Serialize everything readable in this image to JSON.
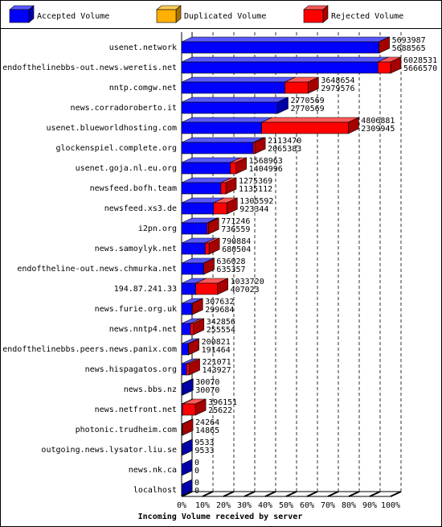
{
  "chart_data": {
    "type": "bar3d",
    "title": "Incoming Volume received by server",
    "legend": [
      {
        "name": "Accepted Volume",
        "color": "#0000ff"
      },
      {
        "name": "Duplicated Volume",
        "color": "#ffb000"
      },
      {
        "name": "Rejected Volume",
        "color": "#ff0000"
      }
    ],
    "categories": [
      "usenet.network",
      "endofthelinebbs-out.news.weretis.net",
      "nntp.comgw.net",
      "news.corradoroberto.it",
      "usenet.blueworldhosting.com",
      "glockenspiel.complete.org",
      "usenet.goja.nl.eu.org",
      "newsfeed.bofh.team",
      "newsfeed.xs3.de",
      "i2pn.org",
      "news.samoylyk.net",
      "endoftheline-out.news.chmurka.net",
      "194.87.241.33",
      "news.furie.org.uk",
      "news.nntp4.net",
      "endofthelinebbs.peers.news.panix.com",
      "news.hispagatos.org",
      "news.bbs.nz",
      "news.netfront.net",
      "photonic.trudheim.com",
      "outgoing.news.lysator.liu.se",
      "news.nk.ca",
      "localhost"
    ],
    "offered": [
      5693987,
      6028531,
      3648654,
      2770569,
      4806881,
      2113470,
      1568963,
      1275369,
      1305592,
      771246,
      790884,
      636028,
      1033720,
      307632,
      342856,
      200821,
      221071,
      30070,
      396151,
      24264,
      9533,
      0,
      0
    ],
    "accepted": [
      5688565,
      5666570,
      2979576,
      2770569,
      2309945,
      2065383,
      1404996,
      1135112,
      923344,
      736559,
      680504,
      635357,
      407023,
      299684,
      255554,
      191464,
      143927,
      30070,
      25622,
      14865,
      9533,
      0,
      0
    ],
    "xlim": [
      0,
      6028531
    ],
    "xticks": [
      {
        "value": 0,
        "label": "0%"
      },
      {
        "value": 602853.1,
        "label": "10%"
      },
      {
        "value": 1205706.2,
        "label": "20%"
      },
      {
        "value": 1808559.3,
        "label": "30%"
      },
      {
        "value": 2411412.4,
        "label": "40%"
      },
      {
        "value": 3014265.5,
        "label": "50%"
      },
      {
        "value": 3617118.6,
        "label": "60%"
      },
      {
        "value": 4219971.7,
        "label": "70%"
      },
      {
        "value": 4822824.8,
        "label": "80%"
      },
      {
        "value": 5425677.9,
        "label": "90%"
      },
      {
        "value": 6028531,
        "label": "100%"
      }
    ],
    "grid": true
  }
}
